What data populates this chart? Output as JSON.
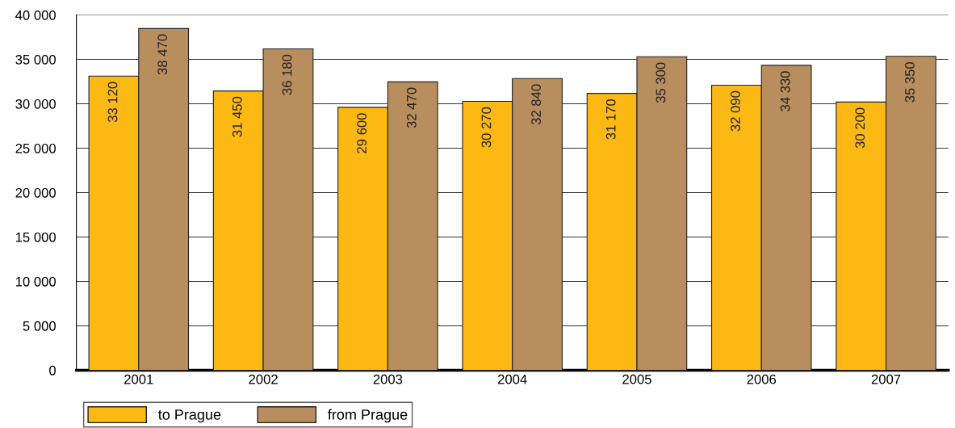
{
  "chart_data": {
    "type": "bar",
    "categories": [
      "2001",
      "2002",
      "2003",
      "2004",
      "2005",
      "2006",
      "2007"
    ],
    "series": [
      {
        "name": "to Prague",
        "color": "#fcb813",
        "values": [
          33120,
          31450,
          29600,
          30270,
          31170,
          32090,
          30200
        ],
        "value_labels": [
          "33 120",
          "31 450",
          "29 600",
          "30 270",
          "31 170",
          "32 090",
          "30 200"
        ]
      },
      {
        "name": "from Prague",
        "color": "#b98e5f",
        "values": [
          38470,
          36180,
          32470,
          32840,
          35300,
          34330,
          35350
        ],
        "value_labels": [
          "38 470",
          "36 180",
          "32 470",
          "32 840",
          "35 300",
          "34 330",
          "35 350"
        ]
      }
    ],
    "ylim": [
      0,
      40000
    ],
    "yticks": [
      {
        "value": 0,
        "label": "0"
      },
      {
        "value": 5000,
        "label": "5 000"
      },
      {
        "value": 10000,
        "label": "10 000"
      },
      {
        "value": 15000,
        "label": "15 000"
      },
      {
        "value": 20000,
        "label": "20 000"
      },
      {
        "value": 25000,
        "label": "25 000"
      },
      {
        "value": 30000,
        "label": "30 000"
      },
      {
        "value": 35000,
        "label": "35 000"
      },
      {
        "value": 40000,
        "label": "40 000"
      }
    ],
    "grid": "y",
    "legend": "bottom left"
  }
}
